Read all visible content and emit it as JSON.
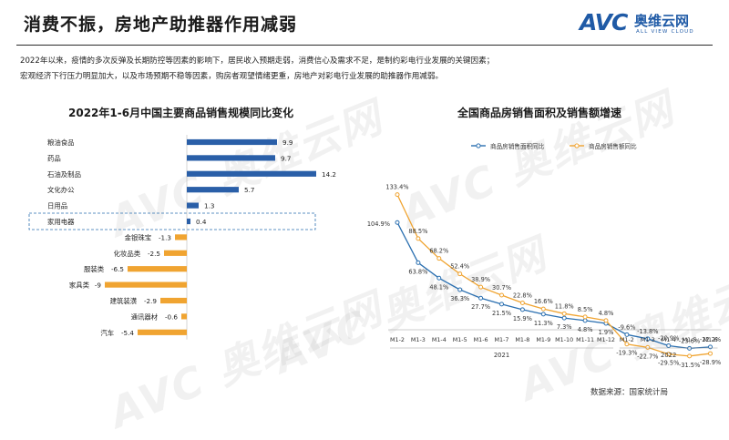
{
  "header": {
    "title": "消费不振，房地产助推器作用减弱",
    "logo": {
      "mark": "AVC",
      "cn": "奥维云网",
      "en": "ALL VIEW CLOUD"
    }
  },
  "intro": {
    "lines": [
      "2022年以来，疫情的多次反弹及长期防控等因素的影响下，居民收入预期走弱，消费信心及需求不足，是制约彩电行业发展的关键因素；",
      "宏观经济下行压力明显加大，以及市场预期不稳等因素，购房者观望情绪更重，房地产对彩电行业发展的助推器作用减弱。"
    ]
  },
  "watermark": "AVC 奥维云网",
  "source": "数据来源：国家统计局",
  "colors": {
    "positive_bar": "#2a5fa8",
    "negative_bar": "#f0a431",
    "area_series": "#2a6fb0",
    "amount_series": "#f0a431",
    "highlight_box": "#2a6fb0"
  },
  "chart_data": [
    {
      "type": "bar",
      "orientation": "horizontal",
      "title": "2022年1-6月中国主要商品销售规模同比变化",
      "categories": [
        "粮油食品",
        "药品",
        "石油及制品",
        "文化办公",
        "日用品",
        "家用电器",
        "金银珠宝",
        "化妆品类",
        "服装类",
        "家具类",
        "建筑装潢",
        "通讯器材",
        "汽车"
      ],
      "values": [
        9.9,
        9.7,
        14.2,
        5.7,
        1.3,
        0.4,
        -1.3,
        -2.5,
        -6.5,
        -9.0,
        -2.9,
        -0.6,
        -5.4
      ],
      "value_labels": [
        "9.9",
        "9.7",
        "14.2",
        "5.7",
        "1.3",
        "0.4",
        "-1.3",
        "-2.5",
        "-6.5",
        "-9",
        "-2.9",
        "-0.6",
        "-5.4"
      ],
      "highlight": "家用电器",
      "xlim": [
        -10,
        15
      ],
      "grid": false
    },
    {
      "type": "line",
      "title": "全国商品房销售面积及销售额增速",
      "x": [
        "M1-2",
        "M1-3",
        "M1-4",
        "M1-5",
        "M1-6",
        "M1-7",
        "M1-8",
        "M1-9",
        "M1-10",
        "M1-11",
        "M1-12",
        "M1-2",
        "M1-3",
        "M1-4",
        "M1-5",
        "M1-6"
      ],
      "x_groups": [
        {
          "label": "2021",
          "start": 0,
          "end": 10
        },
        {
          "label": "2022",
          "start": 11,
          "end": 15
        }
      ],
      "series": [
        {
          "name": "商品房销售面积同比",
          "color": "#2a6fb0",
          "values": [
            104.9,
            63.8,
            48.1,
            36.3,
            27.7,
            21.5,
            15.9,
            11.3,
            7.3,
            4.8,
            1.9,
            -9.6,
            -13.8,
            -20.9,
            -23.6,
            -22.2
          ],
          "labels": [
            "104.9%",
            "63.8%",
            "48.1%",
            "36.3%",
            "27.7%",
            "21.5%",
            "15.9%",
            "11.3%",
            "7.3%",
            "4.8%",
            "1.9%",
            "-9.6%",
            "-13.8%",
            "-20.9%",
            "-23.6%",
            "-22.2%"
          ]
        },
        {
          "name": "商品房销售额同比",
          "color": "#f0a431",
          "values": [
            133.4,
            88.5,
            68.2,
            52.4,
            38.9,
            30.7,
            22.8,
            16.6,
            11.8,
            8.5,
            4.8,
            -19.3,
            -22.7,
            -29.5,
            -31.5,
            -28.9
          ],
          "labels": [
            "133.4%",
            "88.5%",
            "68.2%",
            "52.4%",
            "38.9%",
            "30.7%",
            "22.8%",
            "16.6%",
            "11.8%",
            "8.5%",
            "4.8%",
            "-19.3%",
            "-22.7%",
            "-29.5%",
            "-31.5%",
            "-28.9%"
          ]
        }
      ],
      "ylim": [
        -40,
        140
      ],
      "legend_position": "top-left",
      "grid": false
    }
  ]
}
